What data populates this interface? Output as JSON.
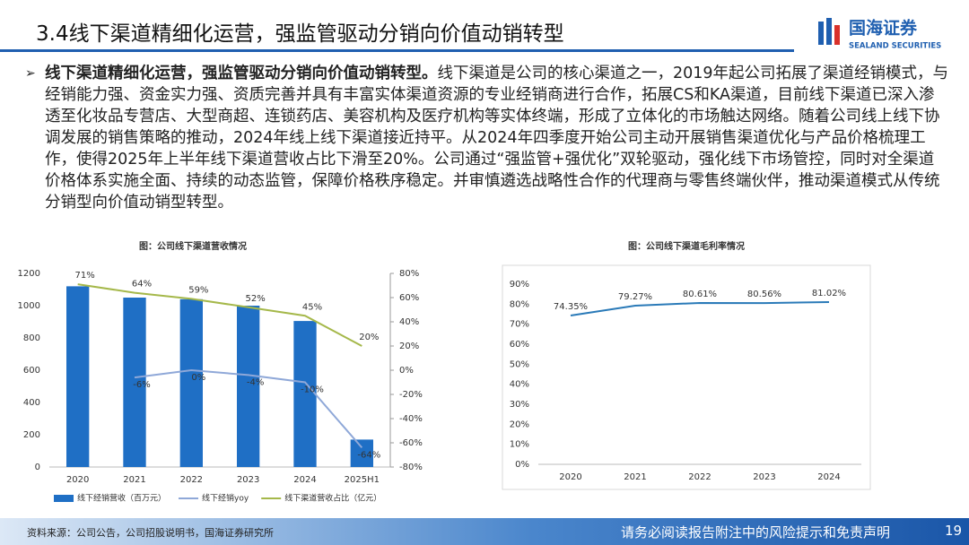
{
  "header": {
    "title": "3.4线下渠道精细化运营，强监管驱动分销向价值动销转型",
    "logo_cn": "国海证券",
    "logo_en": "SEALAND SECURITIES"
  },
  "body": {
    "lead": "线下渠道精细化运营，强监管驱动分销向价值动销转型。",
    "text": "线下渠道是公司的核心渠道之一，2019年起公司拓展了渠道经销模式，与经销能力强、资金实力强、资质完善并具有丰富实体渠道资源的专业经销商进行合作，拓展CS和KA渠道，目前线下渠道已深入渗透至化妆品专营店、大型商超、连锁药店、美容机构及医疗机构等实体终端，形成了立体化的市场触达网络。随着公司线上线下协调发展的销售策略的推动，2024年线上线下渠道接近持平。从2024年四季度开始公司主动开展销售渠道优化与产品价格梳理工作，使得2025年上半年线下渠道营收占比下滑至20%。公司通过“强监管+强优化”双轮驱动，强化线下市场管控，同时对全渠道价格体系实施全面、持续的动态监管，保障价格秩序稳定。并审慎遴选战略性合作的代理商与零售终端伙伴，推动渠道模式从传统分销型向价值动销型转型。"
  },
  "chart_data": [
    {
      "type": "bar",
      "title": "图：公司线下渠道营收情况",
      "categories": [
        "2020",
        "2021",
        "2022",
        "2023",
        "2024",
        "2025H1"
      ],
      "series": [
        {
          "name": "线下经销营收（百万元）",
          "type": "bar",
          "color": "#1f6fc5",
          "values": [
            1120,
            1050,
            1040,
            1000,
            905,
            170
          ]
        },
        {
          "name": "线下经销yoy",
          "type": "line",
          "axis": "y2",
          "color": "#8fa8d8",
          "values": [
            null,
            -6,
            0,
            -4,
            -10,
            -64
          ],
          "value_labels": [
            null,
            "-6%",
            "0%",
            "-4%",
            "-10%",
            "-64%"
          ]
        },
        {
          "name": "线下渠道营收占比（亿元）",
          "type": "line",
          "axis": "y2",
          "color": "#a5b84a",
          "values": [
            71,
            64,
            59,
            52,
            45,
            20
          ],
          "value_labels": [
            "71%",
            "64%",
            "59%",
            "52%",
            "45%",
            "20%"
          ]
        }
      ],
      "ylim": [
        0,
        1200
      ],
      "yticks": [
        0,
        200,
        400,
        600,
        800,
        1000,
        1200
      ],
      "y2lim": [
        -80,
        80
      ],
      "y2ticks": [
        {
          "value": -80,
          "label": "-80%"
        },
        {
          "value": -60,
          "label": "-60%"
        },
        {
          "value": -40,
          "label": "-40%"
        },
        {
          "value": -20,
          "label": "-20%"
        },
        {
          "value": 0,
          "label": "0%"
        },
        {
          "value": 20,
          "label": "20%"
        },
        {
          "value": 40,
          "label": "40%"
        },
        {
          "value": 60,
          "label": "60%"
        },
        {
          "value": 80,
          "label": "80%"
        }
      ],
      "grid": false,
      "legend": "bottom"
    },
    {
      "type": "line",
      "title": "图：公司线下渠道毛利率情况",
      "categories": [
        "2020",
        "2021",
        "2022",
        "2023",
        "2024"
      ],
      "series": [
        {
          "name": "毛利率",
          "type": "line",
          "color": "#2a7ab8",
          "values": [
            74.35,
            79.27,
            80.61,
            80.56,
            81.02
          ],
          "value_labels": [
            "74.35%",
            "79.27%",
            "80.61%",
            "80.56%",
            "81.02%"
          ]
        }
      ],
      "ylim": [
        0,
        90
      ],
      "yticks": [
        {
          "value": 0,
          "label": "0%"
        },
        {
          "value": 10,
          "label": "10%"
        },
        {
          "value": 20,
          "label": "20%"
        },
        {
          "value": 30,
          "label": "30%"
        },
        {
          "value": 40,
          "label": "40%"
        },
        {
          "value": 50,
          "label": "50%"
        },
        {
          "value": 60,
          "label": "60%"
        },
        {
          "value": 70,
          "label": "70%"
        },
        {
          "value": 80,
          "label": "80%"
        },
        {
          "value": 90,
          "label": "90%"
        }
      ],
      "grid": false,
      "legend": "none"
    }
  ],
  "footer": {
    "source": "资料来源：公司公告，公司招股说明书，国海证券研究所",
    "disclaimer": "请务必阅读报告附注中的风险提示和免责声明",
    "page": 19
  }
}
